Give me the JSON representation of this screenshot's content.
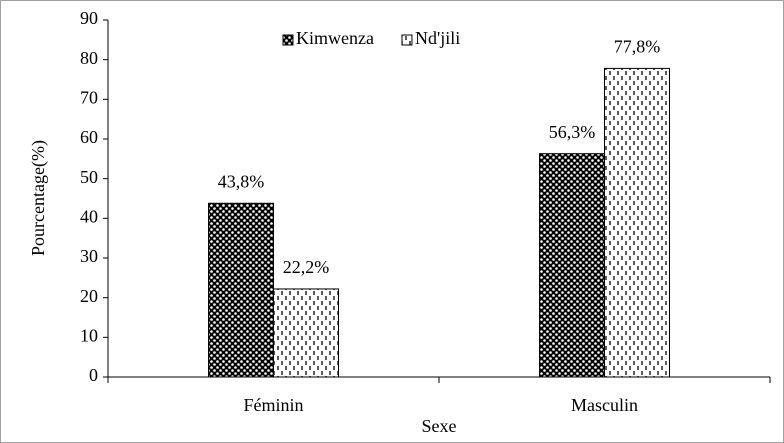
{
  "chart_data": {
    "type": "bar",
    "categories": [
      "Féminin",
      "Masculin"
    ],
    "series": [
      {
        "name": "Kimwenza",
        "color": "#000000",
        "values": [
          43.8,
          56.3
        ],
        "value_labels": [
          "43,8%",
          "56,3%"
        ]
      },
      {
        "name": "Nd'jili",
        "color": "#000000",
        "values": [
          22.2,
          77.8
        ],
        "value_labels": [
          "22,2%",
          "77,8%"
        ]
      }
    ],
    "xlabel": "Sexe",
    "ylabel": "Pourcentage(%)",
    "ylim": [
      0,
      90
    ],
    "yticks": [
      0,
      10,
      20,
      30,
      40,
      50,
      60,
      70,
      80,
      90
    ],
    "grid": false,
    "legend": "top"
  }
}
